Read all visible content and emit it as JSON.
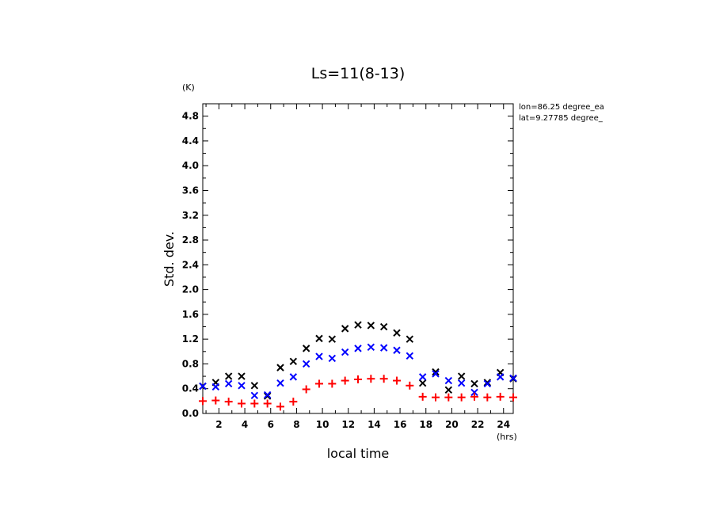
{
  "chart_data": {
    "type": "scatter",
    "title": "Ls=11(8-13)",
    "ylabel": "Std. dev.",
    "xlabel": "local time",
    "y_unit": "(K)",
    "x_unit": "(hrs)",
    "annotations": [
      "lon=86.25 degree_ea",
      "lat=9.27785 degree_"
    ],
    "xlim": [
      0.75,
      24.75
    ],
    "ylim": [
      0,
      5.0
    ],
    "xticks": [
      2,
      4,
      6,
      8,
      10,
      12,
      14,
      16,
      18,
      20,
      22,
      24
    ],
    "xtick_labels": [
      "2",
      "4",
      "6",
      "8",
      "10",
      "12",
      "14",
      "16",
      "18",
      "20",
      "22",
      "24"
    ],
    "yticks": [
      0.0,
      0.4,
      0.8,
      1.2,
      1.6,
      2.0,
      2.4,
      2.8,
      3.2,
      3.6,
      4.0,
      4.4,
      4.8
    ],
    "ytick_labels": [
      "0.0",
      "0.4",
      "0.8",
      "1.2",
      "1.6",
      "2.0",
      "2.4",
      "2.8",
      "3.2",
      "3.6",
      "4.0",
      "4.4",
      "4.8"
    ],
    "x": [
      0.75,
      1.75,
      2.75,
      3.75,
      4.75,
      5.75,
      6.75,
      7.75,
      8.75,
      9.75,
      10.75,
      11.75,
      12.75,
      13.75,
      14.75,
      15.75,
      16.75,
      17.75,
      18.75,
      19.75,
      20.75,
      21.75,
      22.75,
      23.75,
      24.75
    ],
    "series": [
      {
        "marker": "x",
        "color": "#000000",
        "values": [
          0.44,
          0.5,
          0.6,
          0.6,
          0.45,
          0.28,
          0.74,
          0.84,
          1.05,
          1.21,
          1.2,
          1.37,
          1.43,
          1.42,
          1.4,
          1.3,
          1.2,
          0.49,
          0.67,
          0.38,
          0.6,
          0.48,
          0.5,
          0.66,
          0.56
        ]
      },
      {
        "marker": "x",
        "color": "#0000ff",
        "values": [
          0.44,
          0.43,
          0.48,
          0.45,
          0.29,
          0.3,
          0.49,
          0.59,
          0.8,
          0.92,
          0.89,
          0.99,
          1.05,
          1.07,
          1.06,
          1.02,
          0.93,
          0.59,
          0.64,
          0.53,
          0.49,
          0.34,
          0.48,
          0.59,
          0.57
        ]
      },
      {
        "marker": "+",
        "color": "#ff0000",
        "values": [
          0.2,
          0.21,
          0.19,
          0.16,
          0.16,
          0.16,
          0.11,
          0.19,
          0.39,
          0.48,
          0.48,
          0.53,
          0.55,
          0.56,
          0.56,
          0.53,
          0.45,
          0.27,
          0.26,
          0.26,
          0.26,
          0.27,
          0.26,
          0.27,
          0.26
        ]
      }
    ]
  }
}
